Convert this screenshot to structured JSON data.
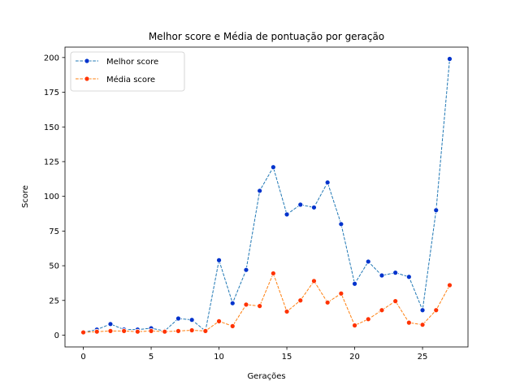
{
  "chart_data": {
    "type": "line",
    "title": "Melhor score e Média de pontuação por geração",
    "xlabel": "Gerações",
    "ylabel": "Score",
    "xlim": [
      -1.35,
      28.35
    ],
    "ylim": [
      -8.5,
      207.5
    ],
    "xticks": [
      0,
      5,
      10,
      15,
      20,
      25
    ],
    "yticks": [
      0,
      25,
      50,
      75,
      100,
      125,
      150,
      175,
      200
    ],
    "grid": false,
    "legend_position": "top-left",
    "x": [
      0,
      1,
      2,
      3,
      4,
      5,
      6,
      7,
      8,
      9,
      10,
      11,
      12,
      13,
      14,
      15,
      16,
      17,
      18,
      19,
      20,
      21,
      22,
      23,
      24,
      25,
      26,
      27
    ],
    "series": [
      {
        "name": "Melhor score",
        "line_color": "#1f77b4",
        "marker_color": "#0033cc",
        "values": [
          2,
          4,
          8,
          4,
          4,
          5,
          3,
          12,
          11,
          3,
          54,
          23,
          47,
          104,
          121,
          87,
          94,
          92,
          110,
          80,
          37,
          53,
          43,
          45,
          42,
          18,
          90,
          199
        ]
      },
      {
        "name": "Média score",
        "line_color": "#ff7f0e",
        "marker_color": "#ff3300",
        "values": [
          2,
          2.5,
          3,
          3,
          2.5,
          3,
          2.5,
          3,
          3.5,
          3,
          10,
          6.5,
          22,
          21,
          44.5,
          17,
          25,
          39,
          23.5,
          30,
          7,
          11.5,
          18,
          24.5,
          9,
          7.5,
          18,
          36
        ]
      }
    ]
  }
}
